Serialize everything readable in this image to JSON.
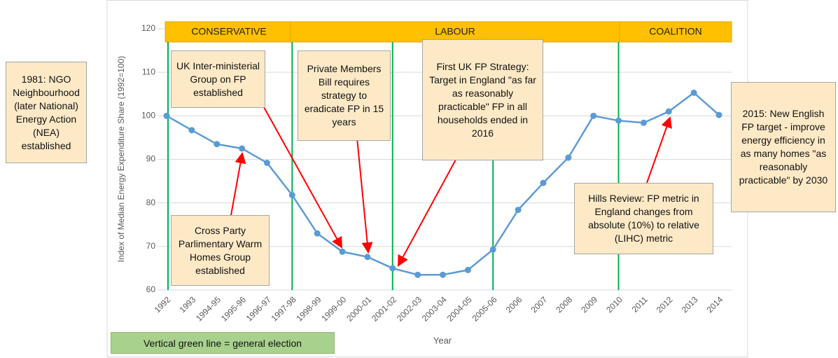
{
  "chart_data": {
    "type": "line",
    "x_label": "Year",
    "y_label": "Index of Median Energy Expenditure Share (1992=100)",
    "categories": [
      "1992",
      "1993",
      "1994-95",
      "1995-96",
      "1996-97",
      "1997-98",
      "1998-99",
      "1999-00",
      "2000-01",
      "2001-02",
      "2002-03",
      "2003-04",
      "2004-05",
      "2005-06",
      "2006",
      "2007",
      "2008",
      "2009",
      "2010",
      "2011",
      "2012",
      "2013",
      "2014"
    ],
    "series": [
      {
        "color": "#5b9bd5",
        "values": [
          100,
          96.7,
          93.5,
          92.5,
          89.2,
          81.8,
          73,
          68.8,
          67.6,
          65,
          63.5,
          63.5,
          64.6,
          69.3,
          78.4,
          84.6,
          90.4,
          100,
          98.9,
          98.4,
          101,
          105.3,
          100.2
        ]
      }
    ],
    "ylim": [
      60,
      120
    ],
    "yticks": [
      60,
      70,
      80,
      90,
      100,
      110,
      120
    ],
    "grid": true,
    "bands": [
      {
        "label": "CONSERVATIVE"
      },
      {
        "label": "LABOUR"
      },
      {
        "label": "COALITION"
      }
    ],
    "annotations": [
      {
        "text": "1981: NGO Neighbourhood (later National) Energy Action (NEA) established"
      },
      {
        "text": "UK Inter-ministerial Group on FP established"
      },
      {
        "text": "Private Members Bill requires strategy to eradicate FP in 15 years"
      },
      {
        "text": "First UK FP Strategy: Target in England \"as far as reasonably practicable\" FP in all households ended in 2016"
      },
      {
        "text": "2015: New English FP target - improve energy efficiency in as many homes \"as reasonably practicable\" by 2030"
      },
      {
        "text": "Cross Party Parlimentary Warm Homes Group established"
      },
      {
        "text": "Hills Review:  FP metric in England changes from absolute (10%) to relative (LIHC) metric"
      }
    ],
    "note": "Vertical green line = general election"
  }
}
